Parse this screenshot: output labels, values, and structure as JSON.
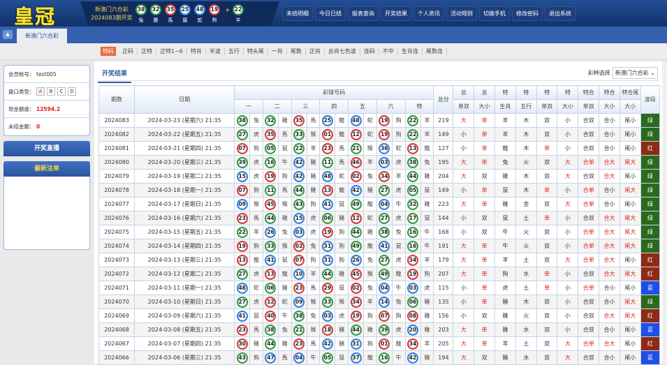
{
  "header": {
    "logo": "皇冠",
    "lottery": "新澳门六合彩",
    "issue_text": "2024083期开奖",
    "plus": "+",
    "balls": [
      {
        "n": "38",
        "z": "兔"
      },
      {
        "n": "32",
        "z": "雞"
      },
      {
        "n": "35",
        "z": "馬"
      },
      {
        "n": "25",
        "z": "龍"
      },
      {
        "n": "48",
        "z": "蛇"
      },
      {
        "n": "19",
        "z": "狗"
      },
      {
        "n": "22",
        "z": "羊"
      }
    ],
    "nav": [
      "未结明细",
      "今日已结",
      "报表查询",
      "开奖结果",
      "个人资讯",
      "活动规则",
      "切换手机",
      "修改密码",
      "退出系统"
    ]
  },
  "tabbar": {
    "game_tab": "新澳门六合彩",
    "collapse_icon": "triangle-up-icon"
  },
  "subtabs": {
    "active": 0,
    "items": [
      "特码",
      "正码",
      "正特",
      "正特1~6",
      "特肖",
      "半波",
      "五行",
      "特头尾",
      "一肖",
      "尾数",
      "正肖",
      "总肖七色波",
      "连码",
      "不中",
      "生肖连",
      "尾数连"
    ]
  },
  "account": {
    "member_label": "会员帐号：",
    "member": "test005",
    "plate_label": "盘口类型：",
    "plates": [
      "A",
      "B",
      "C",
      "D"
    ],
    "plate_active": "A",
    "credit_label": "现金额度：",
    "credit": "12594.2",
    "unsettled_label": "未结金额：",
    "unsettled": "0"
  },
  "left_buttons": {
    "live": "开奖直播",
    "latest": "最新注单"
  },
  "main": {
    "tab": "开奖结果",
    "select_label": "彩种选择",
    "select_value": "新澳门六合彩"
  },
  "colors": {
    "red": "#d23a3a",
    "blue": "#2f7ee0",
    "green": "#2f9a3f",
    "wave_green": "#2a6a1e",
    "wave_red": "#8e2b16",
    "wave_blue": "#1f4fe8",
    "highlight": "#e0201f"
  },
  "ball_colors": {
    "red": [
      1,
      2,
      7,
      8,
      12,
      13,
      18,
      19,
      23,
      24,
      29,
      30,
      34,
      35,
      40,
      45,
      46
    ],
    "blue": [
      3,
      4,
      9,
      10,
      14,
      15,
      20,
      25,
      26,
      31,
      36,
      37,
      41,
      42,
      47,
      48
    ],
    "green": [
      5,
      6,
      11,
      16,
      17,
      21,
      22,
      27,
      28,
      32,
      33,
      38,
      39,
      43,
      44,
      49
    ]
  },
  "table": {
    "headers": {
      "issue": "期数",
      "date": "日期",
      "balls": "彩球号码",
      "ball_cols": [
        "一",
        "二",
        "三",
        "四",
        "五",
        "六",
        "特"
      ],
      "total": "总分",
      "attr_top": [
        "总",
        "总",
        "特",
        "特",
        "特",
        "特",
        "特合",
        "特合",
        "特合尾"
      ],
      "attr_bottom": [
        "单双",
        "大小",
        "生肖",
        "五行",
        "单双",
        "大小",
        "单双",
        "大小",
        "大小"
      ],
      "wave": "波段"
    },
    "rows": [
      {
        "issue": "2024083",
        "date": "2024-03-23 (星期六) 21:35",
        "balls": [
          [
            "38",
            "兔"
          ],
          [
            "32",
            "雞"
          ],
          [
            "35",
            "馬"
          ],
          [
            "25",
            "龍"
          ],
          [
            "48",
            "蛇"
          ],
          [
            "19",
            "狗"
          ],
          [
            "22",
            "羊"
          ]
        ],
        "total": "219",
        "attrs": [
          "大",
          "单",
          "羊",
          "木",
          "双",
          "小",
          "合双",
          "合小",
          "尾小"
        ],
        "wave": "绿"
      },
      {
        "issue": "2024082",
        "date": "2024-03-22 (星期五) 21:35",
        "balls": [
          [
            "27",
            "虎"
          ],
          [
            "35",
            "馬"
          ],
          [
            "33",
            "猴"
          ],
          [
            "01",
            "龍"
          ],
          [
            "12",
            "蛇"
          ],
          [
            "19",
            "狗"
          ],
          [
            "22",
            "羊"
          ]
        ],
        "total": "149",
        "attrs": [
          "小",
          "单",
          "羊",
          "木",
          "双",
          "小",
          "合双",
          "合小",
          "尾小"
        ],
        "wave": "绿"
      },
      {
        "issue": "2024081",
        "date": "2024-03-21 (星期四) 21:35",
        "balls": [
          [
            "07",
            "狗"
          ],
          [
            "05",
            "鼠"
          ],
          [
            "22",
            "羊"
          ],
          [
            "23",
            "馬"
          ],
          [
            "21",
            "猴"
          ],
          [
            "36",
            "蛇"
          ],
          [
            "13",
            "龍"
          ]
        ],
        "total": "127",
        "attrs": [
          "小",
          "单",
          "龍",
          "木",
          "单",
          "小",
          "合双",
          "合小",
          "尾小"
        ],
        "wave": "红"
      },
      {
        "issue": "2024080",
        "date": "2024-03-20 (星期三) 21:35",
        "balls": [
          [
            "39",
            "虎"
          ],
          [
            "16",
            "牛"
          ],
          [
            "42",
            "豬"
          ],
          [
            "11",
            "馬"
          ],
          [
            "46",
            "羊"
          ],
          [
            "03",
            "虎"
          ],
          [
            "38",
            "兔"
          ]
        ],
        "total": "195",
        "attrs": [
          "大",
          "单",
          "兔",
          "火",
          "双",
          "大",
          "合单",
          "合大",
          "尾大"
        ],
        "wave": "绿"
      },
      {
        "issue": "2024079",
        "date": "2024-03-19 (星期二) 21:35",
        "balls": [
          [
            "15",
            "虎"
          ],
          [
            "19",
            "狗"
          ],
          [
            "42",
            "豬"
          ],
          [
            "48",
            "蛇"
          ],
          [
            "02",
            "兔"
          ],
          [
            "34",
            "羊"
          ],
          [
            "44",
            "雞"
          ]
        ],
        "total": "204",
        "attrs": [
          "大",
          "双",
          "雞",
          "木",
          "双",
          "大",
          "合双",
          "合大",
          "尾小"
        ],
        "wave": "绿"
      },
      {
        "issue": "2024078",
        "date": "2024-03-18 (星期一) 21:35",
        "balls": [
          [
            "07",
            "狗"
          ],
          [
            "11",
            "馬"
          ],
          [
            "44",
            "雞"
          ],
          [
            "13",
            "龍"
          ],
          [
            "42",
            "豬"
          ],
          [
            "27",
            "虎"
          ],
          [
            "05",
            "鼠"
          ]
        ],
        "total": "149",
        "attrs": [
          "小",
          "单",
          "鼠",
          "木",
          "单",
          "小",
          "合单",
          "合小",
          "尾大"
        ],
        "wave": "绿"
      },
      {
        "issue": "2024077",
        "date": "2024-03-17 (星期日) 21:35",
        "balls": [
          [
            "09",
            "猴"
          ],
          [
            "45",
            "猴"
          ],
          [
            "43",
            "狗"
          ],
          [
            "41",
            "鼠"
          ],
          [
            "49",
            "龍"
          ],
          [
            "04",
            "牛"
          ],
          [
            "32",
            "雞"
          ]
        ],
        "total": "223",
        "attrs": [
          "大",
          "单",
          "雞",
          "金",
          "双",
          "大",
          "合单",
          "合小",
          "尾小"
        ],
        "wave": "绿"
      },
      {
        "issue": "2024076",
        "date": "2024-03-16 (星期六) 21:35",
        "balls": [
          [
            "23",
            "馬"
          ],
          [
            "44",
            "雞"
          ],
          [
            "15",
            "虎"
          ],
          [
            "06",
            "豬"
          ],
          [
            "12",
            "蛇"
          ],
          [
            "27",
            "虎"
          ],
          [
            "17",
            "鼠"
          ]
        ],
        "total": "144",
        "attrs": [
          "小",
          "双",
          "鼠",
          "土",
          "单",
          "小",
          "合双",
          "合大",
          "尾大"
        ],
        "wave": "绿"
      },
      {
        "issue": "2024075",
        "date": "2024-03-15 (星期五) 21:35",
        "balls": [
          [
            "22",
            "羊"
          ],
          [
            "26",
            "兔"
          ],
          [
            "03",
            "虎"
          ],
          [
            "19",
            "狗"
          ],
          [
            "44",
            "雞"
          ],
          [
            "38",
            "兔"
          ],
          [
            "16",
            "牛"
          ]
        ],
        "total": "168",
        "attrs": [
          "小",
          "双",
          "牛",
          "火",
          "双",
          "小",
          "合单",
          "合大",
          "尾大"
        ],
        "wave": "绿"
      },
      {
        "issue": "2024074",
        "date": "2024-03-14 (星期四) 21:35",
        "balls": [
          [
            "19",
            "狗"
          ],
          [
            "33",
            "猴"
          ],
          [
            "02",
            "兔"
          ],
          [
            "31",
            "狗"
          ],
          [
            "49",
            "龍"
          ],
          [
            "41",
            "鼠"
          ],
          [
            "16",
            "牛"
          ]
        ],
        "total": "191",
        "attrs": [
          "大",
          "单",
          "牛",
          "火",
          "双",
          "小",
          "合单",
          "合大",
          "尾大"
        ],
        "wave": "绿"
      },
      {
        "issue": "2024073",
        "date": "2024-03-13 (星期三) 21:35",
        "balls": [
          [
            "13",
            "龍"
          ],
          [
            "41",
            "鼠"
          ],
          [
            "07",
            "狗"
          ],
          [
            "31",
            "狗"
          ],
          [
            "26",
            "兔"
          ],
          [
            "27",
            "虎"
          ],
          [
            "34",
            "羊"
          ]
        ],
        "total": "179",
        "attrs": [
          "大",
          "单",
          "羊",
          "土",
          "双",
          "大",
          "合单",
          "合大",
          "尾小"
        ],
        "wave": "红"
      },
      {
        "issue": "2024072",
        "date": "2024-03-12 (星期二) 21:35",
        "balls": [
          [
            "27",
            "虎"
          ],
          [
            "13",
            "龍"
          ],
          [
            "10",
            "羊"
          ],
          [
            "44",
            "雞"
          ],
          [
            "45",
            "猴"
          ],
          [
            "49",
            "龍"
          ],
          [
            "19",
            "狗"
          ]
        ],
        "total": "207",
        "attrs": [
          "大",
          "单",
          "狗",
          "水",
          "单",
          "小",
          "合双",
          "合大",
          "尾大"
        ],
        "wave": "红"
      },
      {
        "issue": "2024071",
        "date": "2024-03-11 (星期一) 21:35",
        "balls": [
          [
            "48",
            "蛇"
          ],
          [
            "06",
            "豬"
          ],
          [
            "23",
            "馬"
          ],
          [
            "29",
            "鼠"
          ],
          [
            "02",
            "兔"
          ],
          [
            "04",
            "牛"
          ],
          [
            "03",
            "虎"
          ]
        ],
        "total": "115",
        "attrs": [
          "小",
          "单",
          "虎",
          "土",
          "单",
          "小",
          "合单",
          "合小",
          "尾小"
        ],
        "wave": "蓝"
      },
      {
        "issue": "2024070",
        "date": "2024-03-10 (星期日) 21:35",
        "balls": [
          [
            "27",
            "虎"
          ],
          [
            "12",
            "蛇"
          ],
          [
            "09",
            "猴"
          ],
          [
            "33",
            "猴"
          ],
          [
            "34",
            "羊"
          ],
          [
            "14",
            "兔"
          ],
          [
            "06",
            "豬"
          ]
        ],
        "total": "135",
        "attrs": [
          "小",
          "单",
          "豬",
          "木",
          "双",
          "小",
          "合双",
          "合小",
          "尾大"
        ],
        "wave": "绿"
      },
      {
        "issue": "2024069",
        "date": "2024-03-09 (星期六) 21:35",
        "balls": [
          [
            "41",
            "鼠"
          ],
          [
            "40",
            "牛"
          ],
          [
            "38",
            "兔"
          ],
          [
            "03",
            "虎"
          ],
          [
            "19",
            "狗"
          ],
          [
            "07",
            "狗"
          ],
          [
            "08",
            "雞"
          ]
        ],
        "total": "156",
        "attrs": [
          "小",
          "双",
          "雞",
          "火",
          "双",
          "小",
          "合双",
          "合大",
          "尾大"
        ],
        "wave": "红"
      },
      {
        "issue": "2024068",
        "date": "2024-03-08 (星期五) 21:35",
        "balls": [
          [
            "23",
            "馬"
          ],
          [
            "38",
            "兔"
          ],
          [
            "21",
            "猴"
          ],
          [
            "18",
            "豬"
          ],
          [
            "44",
            "雞"
          ],
          [
            "39",
            "虎"
          ],
          [
            "20",
            "雞"
          ]
        ],
        "total": "203",
        "attrs": [
          "大",
          "单",
          "雞",
          "水",
          "双",
          "小",
          "合双",
          "合小",
          "尾小"
        ],
        "wave": "蓝"
      },
      {
        "issue": "2024067",
        "date": "2024-03-07 (星期四) 21:35",
        "balls": [
          [
            "30",
            "豬"
          ],
          [
            "44",
            "雞"
          ],
          [
            "23",
            "馬"
          ],
          [
            "42",
            "豬"
          ],
          [
            "31",
            "狗"
          ],
          [
            "01",
            "龍"
          ],
          [
            "34",
            "羊"
          ]
        ],
        "total": "205",
        "attrs": [
          "大",
          "单",
          "羊",
          "土",
          "双",
          "大",
          "合单",
          "合大",
          "尾小"
        ],
        "wave": "红"
      },
      {
        "issue": "2024066",
        "date": "2024-03-06 (星期三) 21:35",
        "balls": [
          [
            "43",
            "狗"
          ],
          [
            "47",
            "馬"
          ],
          [
            "04",
            "牛"
          ],
          [
            "05",
            "鼠"
          ],
          [
            "37",
            "龍"
          ],
          [
            "16",
            "牛"
          ],
          [
            "42",
            "豬"
          ]
        ],
        "total": "194",
        "attrs": [
          "大",
          "双",
          "豬",
          "水",
          "双",
          "大",
          "合双",
          "合小",
          "尾小"
        ],
        "wave": "蓝"
      }
    ]
  }
}
